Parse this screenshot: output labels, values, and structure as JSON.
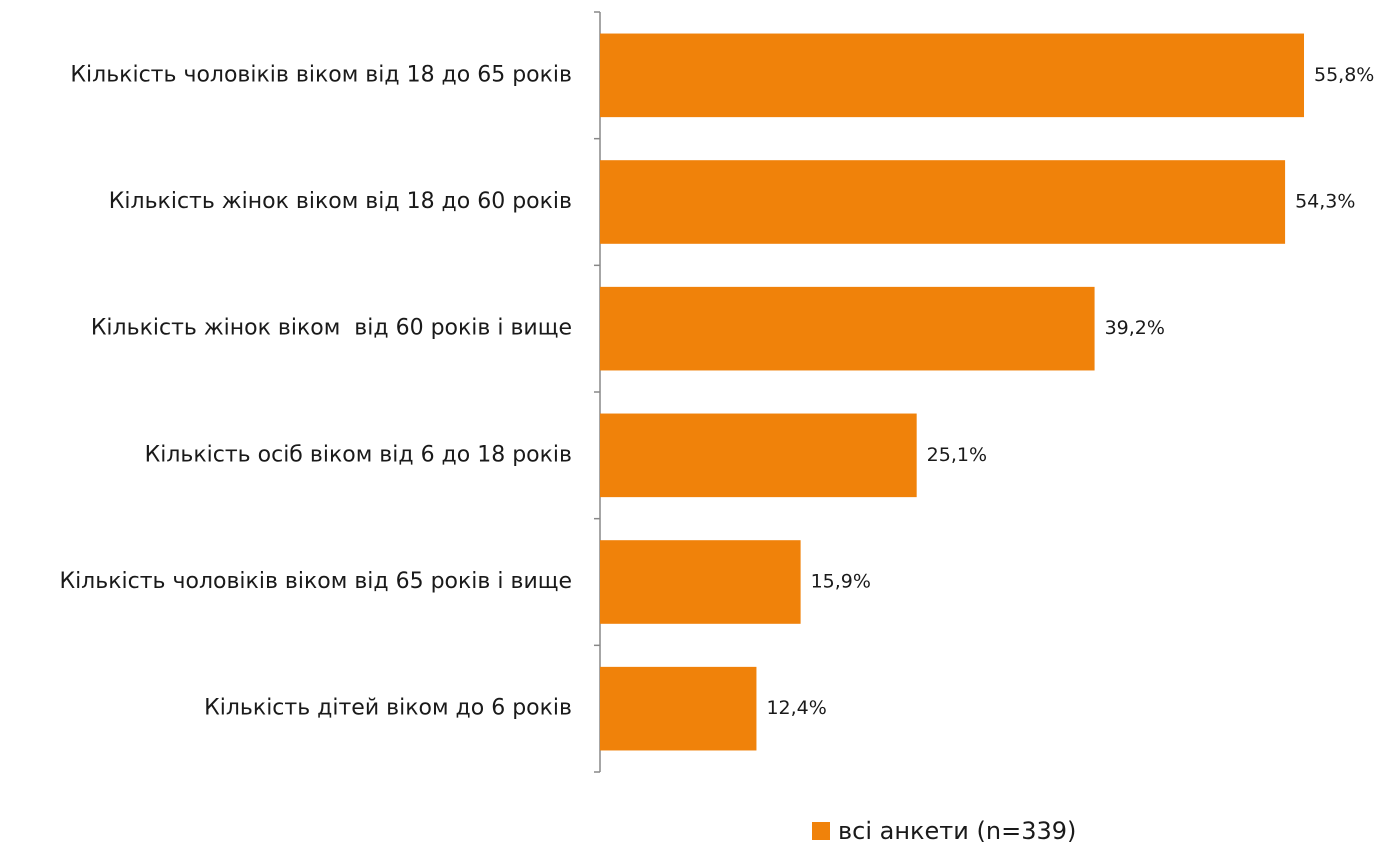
{
  "chart_data": {
    "type": "bar",
    "orientation": "horizontal",
    "categories": [
      "Кількість чоловіків віком від 18 до 65 років",
      "Кількість жінок віком від 18 до 60 років",
      "Кількість жінок віком  від 60 років і вище",
      "Кількість осіб віком від 6 до 18 років",
      "Кількість чоловіків віком від 65 років і вище",
      "Кількість дітей віком до 6 років"
    ],
    "series": [
      {
        "name": "всі анкети (n=339)",
        "color": "#f0820a",
        "values": [
          55.8,
          54.3,
          39.2,
          25.1,
          15.9,
          12.4
        ],
        "value_labels": [
          "55,8%",
          "54,3%",
          "39,2%",
          "25,1%",
          "15,9%",
          "12,4%"
        ]
      }
    ],
    "xlim": [
      0,
      60
    ],
    "legend": "bottom"
  }
}
